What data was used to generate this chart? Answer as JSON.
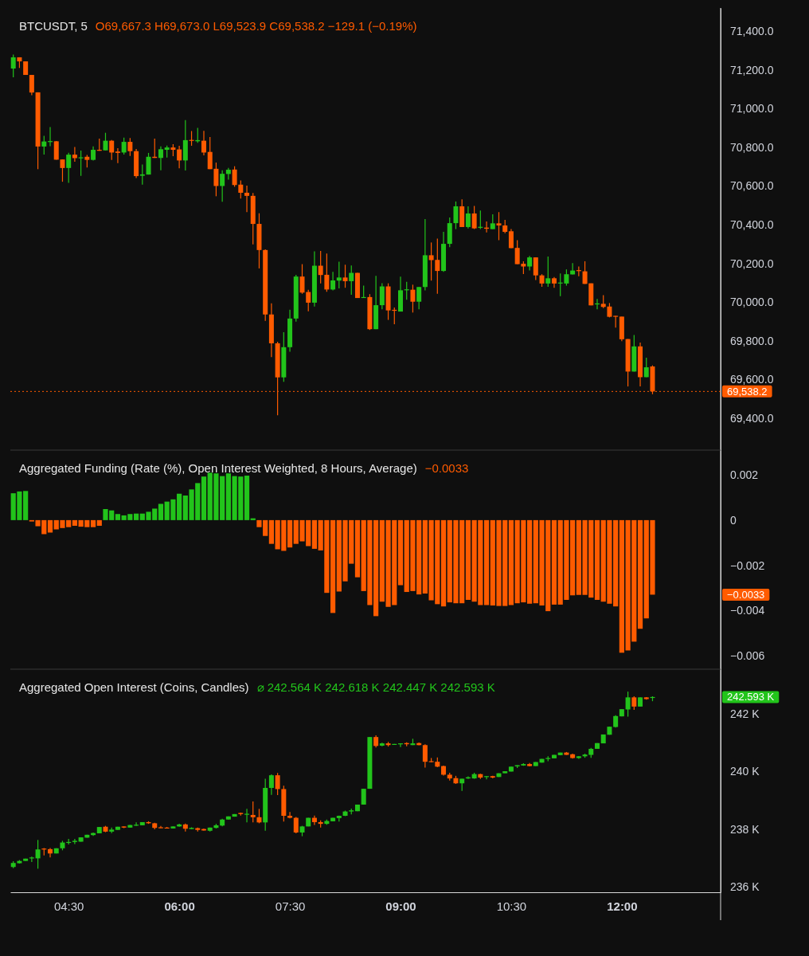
{
  "chart_data": [
    {
      "type": "candlestick",
      "title": "BTCUSDT, 5",
      "subtitle": "O69,667.3 H69,673.0 L69,523.9 C69,538.2 −129.1 (−0.19%)",
      "x": [
        3.75,
        3.8333,
        3.9167,
        4,
        4.0833,
        4.1667,
        4.25,
        4.3333,
        4.4167,
        4.5,
        4.5833,
        4.6667,
        4.75,
        4.8333,
        4.9167,
        5,
        5.0833,
        5.1667,
        5.25,
        5.3333,
        5.4167,
        5.5,
        5.5833,
        5.6667,
        5.75,
        5.8333,
        5.9167,
        6,
        6.0833,
        6.1667,
        6.25,
        6.3333,
        6.4167,
        6.5,
        6.5833,
        6.6667,
        6.75,
        6.8333,
        6.9167,
        7,
        7.0833,
        7.1667,
        7.25,
        7.3333,
        7.4167,
        7.5,
        7.5833,
        7.6667,
        7.75,
        7.8333,
        7.9167,
        8,
        8.0833,
        8.1667,
        8.25,
        8.3333,
        8.4167,
        8.5,
        8.5833,
        8.6667,
        8.75,
        8.8333,
        8.9167,
        9,
        9.0833,
        9.1667,
        9.25,
        9.3333,
        9.4167,
        9.5,
        9.5833,
        9.6667,
        9.75,
        9.8333,
        9.9167,
        10,
        10.0833,
        10.1667,
        10.25,
        10.3333,
        10.4167,
        10.5,
        10.5833,
        10.6667,
        10.75,
        10.8333,
        10.9167,
        11,
        11.0833,
        11.1667,
        11.25,
        11.3333,
        11.4167,
        11.5,
        11.5833,
        11.6667,
        11.75,
        11.8333,
        11.9167,
        12,
        12.0833,
        12.1667,
        12.25,
        12.3333,
        12.4167
      ],
      "ohlc": [
        [
          71207,
          71279,
          71162,
          71265
        ],
        [
          71265,
          71265,
          71210,
          71244
        ],
        [
          71244,
          71244,
          71174,
          71174
        ],
        [
          71174,
          71174,
          71069,
          71083
        ],
        [
          71084,
          71084,
          70687,
          70804
        ],
        [
          70804,
          70859,
          70762,
          70830
        ],
        [
          70830,
          70904,
          70806,
          70832
        ],
        [
          70831,
          70832,
          70736,
          70736
        ],
        [
          70737,
          70737,
          70622,
          70693
        ],
        [
          70693,
          70772,
          70616,
          70762
        ],
        [
          70762,
          70802,
          70725,
          70744
        ],
        [
          70744,
          70783,
          70652,
          70748
        ],
        [
          70751,
          70760,
          70696,
          70735
        ],
        [
          70735,
          70805,
          70732,
          70787
        ],
        [
          70787,
          70845,
          70782,
          70782
        ],
        [
          70784,
          70875,
          70784,
          70834
        ],
        [
          70834,
          70838,
          70735,
          70773
        ],
        [
          70778,
          70795,
          70718,
          70771
        ],
        [
          70773,
          70850,
          70762,
          70828
        ],
        [
          70828,
          70848,
          70755,
          70780
        ],
        [
          70780,
          70791,
          70641,
          70651
        ],
        [
          70653,
          70711,
          70607,
          70660
        ],
        [
          70659,
          70771,
          70659,
          70751
        ],
        [
          70751,
          70845,
          70745,
          70745
        ],
        [
          70745,
          70805,
          70681,
          70790
        ],
        [
          70787,
          70809,
          70747,
          70799
        ],
        [
          70799,
          70816,
          70754,
          70787
        ],
        [
          70789,
          70808,
          70691,
          70732
        ],
        [
          70732,
          70941,
          70680,
          70837
        ],
        [
          70838,
          70884,
          70808,
          70835
        ],
        [
          70831,
          70900,
          70823,
          70837
        ],
        [
          70834,
          70885,
          70758,
          70773
        ],
        [
          70776,
          70853,
          70687,
          70687
        ],
        [
          70689,
          70721,
          70547,
          70600
        ],
        [
          70600,
          70681,
          70518,
          70663
        ],
        [
          70662,
          70693,
          70633,
          70684
        ],
        [
          70685,
          70702,
          70596,
          70605
        ],
        [
          70607,
          70629,
          70535,
          70565
        ],
        [
          70565,
          70602,
          70465,
          70549
        ],
        [
          70549,
          70564,
          70298,
          70404
        ],
        [
          70404,
          70459,
          70174,
          70269
        ],
        [
          70269,
          70272,
          69903,
          69936
        ],
        [
          69936,
          69994,
          69716,
          69787
        ],
        [
          69787,
          69795,
          69415,
          69611
        ],
        [
          69611,
          69844,
          69588,
          69767
        ],
        [
          69767,
          69961,
          69743,
          69915
        ],
        [
          69915,
          70141,
          69899,
          70132
        ],
        [
          70132,
          70196,
          70043,
          70049
        ],
        [
          70052,
          70064,
          69952,
          69997
        ],
        [
          69997,
          70262,
          69977,
          70188
        ],
        [
          70188,
          70264,
          70097,
          70140
        ],
        [
          70141,
          70251,
          70053,
          70065
        ],
        [
          70065,
          70156,
          70060,
          70112
        ],
        [
          70111,
          70209,
          70071,
          70127
        ],
        [
          70127,
          70193,
          70074,
          70108
        ],
        [
          70108,
          70189,
          70038,
          70151
        ],
        [
          70151,
          70151,
          70021,
          70021
        ],
        [
          70023,
          70085,
          70021,
          70026
        ],
        [
          70026,
          70041,
          69856,
          69860
        ],
        [
          69860,
          70136,
          69860,
          69984
        ],
        [
          69984,
          70098,
          69963,
          70081
        ],
        [
          70081,
          70097,
          69908,
          69957
        ],
        [
          69960,
          69972,
          69886,
          69957
        ],
        [
          69951,
          70132,
          69951,
          70061
        ],
        [
          70063,
          70105,
          70012,
          70066
        ],
        [
          70064,
          70090,
          69946,
          70002
        ],
        [
          70002,
          70078,
          69963,
          70078
        ],
        [
          70078,
          70429,
          70060,
          70242
        ],
        [
          70242,
          70308,
          70111,
          70217
        ],
        [
          70218,
          70328,
          70043,
          70161
        ],
        [
          70161,
          70363,
          70156,
          70301
        ],
        [
          70301,
          70437,
          70284,
          70408
        ],
        [
          70408,
          70520,
          70377,
          70495
        ],
        [
          70495,
          70531,
          70388,
          70388
        ],
        [
          70388,
          70495,
          70381,
          70458
        ],
        [
          70458,
          70497,
          70377,
          70381
        ],
        [
          70384,
          70473,
          70377,
          70389
        ],
        [
          70385,
          70417,
          70360,
          70379
        ],
        [
          70377,
          70454,
          70377,
          70407
        ],
        [
          70407,
          70465,
          70320,
          70396
        ],
        [
          70396,
          70425,
          70356,
          70363
        ],
        [
          70366,
          70377,
          70279,
          70279
        ],
        [
          70280,
          70320,
          70196,
          70196
        ],
        [
          70198,
          70211,
          70145,
          70184
        ],
        [
          70184,
          70239,
          70163,
          70231
        ],
        [
          70231,
          70231,
          70114,
          70138
        ],
        [
          70138,
          70144,
          70079,
          70096
        ],
        [
          70096,
          70235,
          70079,
          70123
        ],
        [
          70123,
          70129,
          70074,
          70096
        ],
        [
          70098,
          70148,
          70031,
          70101
        ],
        [
          70096,
          70169,
          70085,
          70144
        ],
        [
          70143,
          70202,
          70143,
          70163
        ],
        [
          70165,
          70184,
          70134,
          70162
        ],
        [
          70159,
          70211,
          70094,
          70094
        ],
        [
          70097,
          70097,
          69983,
          69983
        ],
        [
          69990,
          70016,
          69963,
          69993
        ],
        [
          69991,
          70036,
          69969,
          69975
        ],
        [
          69977,
          69995,
          69921,
          69924
        ],
        [
          69929,
          69929,
          69868,
          69926
        ],
        [
          69925,
          69925,
          69798,
          69808
        ],
        [
          69809,
          69809,
          69564,
          69641
        ],
        [
          69641,
          69830,
          69641,
          69771
        ],
        [
          69771,
          69791,
          69564,
          69612
        ],
        [
          69612,
          69713,
          69612,
          69663
        ],
        [
          69667.3,
          69673.0,
          69523.9,
          69538.2
        ]
      ],
      "colors": [
        "#22c41b",
        "#ff5b00",
        "#ff5b00",
        "#ff5b00",
        "#ff5b00",
        "#22c41b",
        "#22c41b",
        "#ff5b00",
        "#ff5b00",
        "#22c41b",
        "#ff5b00",
        "#22c41b",
        "#ff5b00",
        "#22c41b",
        "#ff5b00",
        "#22c41b",
        "#ff5b00",
        "#ff5b00",
        "#22c41b",
        "#ff5b00",
        "#ff5b00",
        "#22c41b",
        "#22c41b",
        "#ff5b00",
        "#22c41b",
        "#22c41b",
        "#ff5b00",
        "#ff5b00",
        "#22c41b",
        "#ff5b00",
        "#22c41b",
        "#ff5b00",
        "#ff5b00",
        "#ff5b00",
        "#22c41b",
        "#22c41b",
        "#ff5b00",
        "#ff5b00",
        "#ff5b00",
        "#ff5b00",
        "#ff5b00",
        "#ff5b00",
        "#ff5b00",
        "#ff5b00",
        "#22c41b",
        "#22c41b",
        "#22c41b",
        "#ff5b00",
        "#ff5b00",
        "#22c41b",
        "#ff5b00",
        "#ff5b00",
        "#22c41b",
        "#22c41b",
        "#ff5b00",
        "#22c41b",
        "#ff5b00",
        "#22c41b",
        "#ff5b00",
        "#22c41b",
        "#22c41b",
        "#ff5b00",
        "#ff5b00",
        "#22c41b",
        "#22c41b",
        "#ff5b00",
        "#22c41b",
        "#22c41b",
        "#ff5b00",
        "#ff5b00",
        "#22c41b",
        "#22c41b",
        "#22c41b",
        "#ff5b00",
        "#22c41b",
        "#ff5b00",
        "#22c41b",
        "#ff5b00",
        "#22c41b",
        "#ff5b00",
        "#ff5b00",
        "#ff5b00",
        "#ff5b00",
        "#ff5b00",
        "#22c41b",
        "#ff5b00",
        "#ff5b00",
        "#22c41b",
        "#ff5b00",
        "#22c41b",
        "#22c41b",
        "#22c41b",
        "#ff5b00",
        "#ff5b00",
        "#ff5b00",
        "#22c41b",
        "#ff5b00",
        "#ff5b00",
        "#ff5b00",
        "#ff5b00",
        "#ff5b00",
        "#22c41b",
        "#ff5b00",
        "#22c41b",
        "#ff5b00"
      ],
      "xlim": [
        3.71,
        13.34
      ],
      "ylim": [
        69235,
        71520
      ],
      "yticks": [
        {
          "value": 69400,
          "label": "69,400.0"
        },
        {
          "value": 69600,
          "label": "69,600.0"
        },
        {
          "value": 69800,
          "label": "69,800.0"
        },
        {
          "value": 70000,
          "label": "70,000.0"
        },
        {
          "value": 70200,
          "label": "70,200.0"
        },
        {
          "value": 70400,
          "label": "70,400.0"
        },
        {
          "value": 70600,
          "label": "70,600.0"
        },
        {
          "value": 70800,
          "label": "70,800.0"
        },
        {
          "value": 71000,
          "label": "71,000.0"
        },
        {
          "value": 71200,
          "label": "71,200.0"
        },
        {
          "value": 71400,
          "label": "71,400.0"
        }
      ],
      "ref_lines": [
        {
          "axis": "y",
          "value": 69538.2,
          "label": "69,538.2",
          "color": "#ff5b00",
          "line_style": "dotted"
        }
      ],
      "tick_labels": "y",
      "grid": false
    },
    {
      "type": "bar",
      "title": "Aggregated Funding (Rate (%), Open Interest Weighted, 8 Hours, Average)",
      "subtitle": "−0.0033",
      "x": [
        3.75,
        3.8333,
        3.9167,
        4,
        4.0833,
        4.1667,
        4.25,
        4.3333,
        4.4167,
        4.5,
        4.5833,
        4.6667,
        4.75,
        4.8333,
        4.9167,
        5,
        5.0833,
        5.1667,
        5.25,
        5.3333,
        5.4167,
        5.5,
        5.5833,
        5.6667,
        5.75,
        5.8333,
        5.9167,
        6,
        6.0833,
        6.1667,
        6.25,
        6.3333,
        6.4167,
        6.5,
        6.5833,
        6.6667,
        6.75,
        6.8333,
        6.9167,
        7,
        7.0833,
        7.1667,
        7.25,
        7.3333,
        7.4167,
        7.5,
        7.5833,
        7.6667,
        7.75,
        7.8333,
        7.9167,
        8,
        8.0833,
        8.1667,
        8.25,
        8.3333,
        8.4167,
        8.5,
        8.5833,
        8.6667,
        8.75,
        8.8333,
        8.9167,
        9,
        9.0833,
        9.1667,
        9.25,
        9.3333,
        9.4167,
        9.5,
        9.5833,
        9.6667,
        9.75,
        9.8333,
        9.9167,
        10,
        10.0833,
        10.1667,
        10.25,
        10.3333,
        10.4167,
        10.5,
        10.5833,
        10.6667,
        10.75,
        10.8333,
        10.9167,
        11,
        11.0833,
        11.1667,
        11.25,
        11.3333,
        11.4167,
        11.5,
        11.5833,
        11.6667,
        11.75,
        11.8333,
        11.9167,
        12,
        12.0833,
        12.1667,
        12.25,
        12.3333,
        12.4167
      ],
      "values": [
        0.00119,
        0.00127,
        0.00129,
        -6e-05,
        -0.00027,
        -0.00062,
        -0.00055,
        -0.00041,
        -0.00035,
        -0.00031,
        -0.00025,
        -0.00029,
        -0.00031,
        -0.00031,
        -0.00025,
        0.00049,
        0.00043,
        0.00027,
        0.00021,
        0.00027,
        0.00029,
        0.00029,
        0.00037,
        0.00051,
        0.00072,
        0.00082,
        0.00092,
        0.00117,
        0.00109,
        0.00136,
        0.00164,
        0.00193,
        0.0021,
        0.00207,
        0.00195,
        0.00207,
        0.00195,
        0.00193,
        0.00197,
        8e-05,
        -0.00031,
        -0.0007,
        -0.00105,
        -0.00129,
        -0.00136,
        -0.00121,
        -0.00105,
        -0.00094,
        -0.00115,
        -0.00127,
        -0.00134,
        -0.00322,
        -0.00411,
        -0.00316,
        -0.00271,
        -0.00193,
        -0.00253,
        -0.00314,
        -0.00376,
        -0.00425,
        -0.00361,
        -0.00384,
        -0.00376,
        -0.00288,
        -0.00318,
        -0.00314,
        -0.00329,
        -0.00325,
        -0.00355,
        -0.00372,
        -0.00382,
        -0.00364,
        -0.00368,
        -0.00368,
        -0.00353,
        -0.00361,
        -0.00376,
        -0.00376,
        -0.00378,
        -0.0038,
        -0.0038,
        -0.00376,
        -0.00368,
        -0.00364,
        -0.0037,
        -0.00368,
        -0.00378,
        -0.00403,
        -0.00374,
        -0.00374,
        -0.00353,
        -0.00333,
        -0.00331,
        -0.00331,
        -0.00343,
        -0.00353,
        -0.00361,
        -0.0037,
        -0.00382,
        -0.00587,
        -0.00577,
        -0.00538,
        -0.00481,
        -0.00435,
        -0.0033
      ],
      "colors": [
        "#22c41b",
        "#22c41b",
        "#22c41b",
        "#ff5b00",
        "#ff5b00",
        "#ff5b00",
        "#ff5b00",
        "#ff5b00",
        "#ff5b00",
        "#ff5b00",
        "#ff5b00",
        "#ff5b00",
        "#ff5b00",
        "#ff5b00",
        "#ff5b00",
        "#22c41b",
        "#22c41b",
        "#22c41b",
        "#22c41b",
        "#22c41b",
        "#22c41b",
        "#22c41b",
        "#22c41b",
        "#22c41b",
        "#22c41b",
        "#22c41b",
        "#22c41b",
        "#22c41b",
        "#22c41b",
        "#22c41b",
        "#22c41b",
        "#22c41b",
        "#22c41b",
        "#22c41b",
        "#22c41b",
        "#22c41b",
        "#22c41b",
        "#22c41b",
        "#22c41b",
        "#22c41b",
        "#ff5b00",
        "#ff5b00",
        "#ff5b00",
        "#ff5b00",
        "#ff5b00",
        "#ff5b00",
        "#ff5b00",
        "#ff5b00",
        "#ff5b00",
        "#ff5b00",
        "#ff5b00",
        "#ff5b00",
        "#ff5b00",
        "#ff5b00",
        "#ff5b00",
        "#ff5b00",
        "#ff5b00",
        "#ff5b00",
        "#ff5b00",
        "#ff5b00",
        "#ff5b00",
        "#ff5b00",
        "#ff5b00",
        "#ff5b00",
        "#ff5b00",
        "#ff5b00",
        "#ff5b00",
        "#ff5b00",
        "#ff5b00",
        "#ff5b00",
        "#ff5b00",
        "#ff5b00",
        "#ff5b00",
        "#ff5b00",
        "#ff5b00",
        "#ff5b00",
        "#ff5b00",
        "#ff5b00",
        "#ff5b00",
        "#ff5b00",
        "#ff5b00",
        "#ff5b00",
        "#ff5b00",
        "#ff5b00",
        "#ff5b00",
        "#ff5b00",
        "#ff5b00",
        "#ff5b00",
        "#ff5b00",
        "#ff5b00",
        "#ff5b00",
        "#ff5b00",
        "#ff5b00",
        "#ff5b00",
        "#ff5b00",
        "#ff5b00",
        "#ff5b00",
        "#ff5b00",
        "#ff5b00",
        "#ff5b00",
        "#ff5b00",
        "#ff5b00",
        "#ff5b00",
        "#ff5b00",
        "#ff5b00"
      ],
      "xlim": [
        3.71,
        13.34
      ],
      "ylim": [
        -0.0066,
        0.0031
      ],
      "yticks": [
        0.002,
        0,
        {
          "value": -0.002,
          "label": "−0.002"
        },
        {
          "value": -0.004,
          "label": "−0.004"
        },
        {
          "value": -0.006,
          "label": "−0.006"
        }
      ],
      "annotations": [
        "−0.0033"
      ],
      "tick_labels": "y",
      "grid": false
    },
    {
      "type": "candlestick",
      "title": "Aggregated Open Interest (Coins, Candles)",
      "subtitle": "⌀ 242.564 K 242.618 K 242.447 K 242.593 K",
      "x": [
        3.75,
        3.8333,
        3.9167,
        4,
        4.0833,
        4.1667,
        4.25,
        4.3333,
        4.4167,
        4.5,
        4.5833,
        4.6667,
        4.75,
        4.8333,
        4.9167,
        5,
        5.0833,
        5.1667,
        5.25,
        5.3333,
        5.4167,
        5.5,
        5.5833,
        5.6667,
        5.75,
        5.8333,
        5.9167,
        6,
        6.0833,
        6.1667,
        6.25,
        6.3333,
        6.4167,
        6.5,
        6.5833,
        6.6667,
        6.75,
        6.8333,
        6.9167,
        7,
        7.0833,
        7.1667,
        7.25,
        7.3333,
        7.4167,
        7.5,
        7.5833,
        7.6667,
        7.75,
        7.8333,
        7.9167,
        8,
        8.0833,
        8.1667,
        8.25,
        8.3333,
        8.4167,
        8.5,
        8.5833,
        8.6667,
        8.75,
        8.8333,
        8.9167,
        9,
        9.0833,
        9.1667,
        9.25,
        9.3333,
        9.4167,
        9.5,
        9.5833,
        9.6667,
        9.75,
        9.8333,
        9.9167,
        10,
        10.0833,
        10.1667,
        10.25,
        10.3333,
        10.4167,
        10.5,
        10.5833,
        10.6667,
        10.75,
        10.8333,
        10.9167,
        11,
        11.0833,
        11.1667,
        11.25,
        11.3333,
        11.4167,
        11.5,
        11.5833,
        11.6667,
        11.75,
        11.8333,
        11.9167,
        12,
        12.0833,
        12.1667,
        12.25,
        12.3333,
        12.4167
      ],
      "ohlc": [
        [
          236.68,
          236.88,
          236.64,
          236.82
        ],
        [
          236.81,
          236.92,
          236.8,
          236.89
        ],
        [
          236.89,
          236.97,
          236.89,
          236.97
        ],
        [
          236.98,
          237.04,
          236.85,
          237.01
        ],
        [
          236.98,
          237.62,
          236.62,
          237.29
        ],
        [
          237.32,
          237.34,
          237.08,
          237.29
        ],
        [
          237.3,
          237.34,
          237.01,
          237.15
        ],
        [
          237.15,
          237.33,
          237.15,
          237.33
        ],
        [
          237.33,
          237.59,
          237.26,
          237.53
        ],
        [
          237.53,
          237.66,
          237.46,
          237.55
        ],
        [
          237.55,
          237.66,
          237.48,
          237.59
        ],
        [
          237.56,
          237.71,
          237.56,
          237.71
        ],
        [
          237.7,
          237.8,
          237.7,
          237.8
        ],
        [
          237.79,
          237.88,
          237.76,
          237.86
        ],
        [
          237.85,
          238.07,
          237.85,
          238.07
        ],
        [
          238.08,
          238.11,
          237.89,
          237.91
        ],
        [
          237.91,
          238.05,
          237.86,
          237.98
        ],
        [
          237.97,
          238.08,
          237.97,
          238.08
        ],
        [
          238.09,
          238.09,
          238.03,
          238.05
        ],
        [
          238.05,
          238.14,
          238.05,
          238.14
        ],
        [
          238.13,
          238.23,
          238.11,
          238.15
        ],
        [
          238.13,
          238.24,
          238.13,
          238.24
        ],
        [
          238.24,
          238.27,
          238.18,
          238.2
        ],
        [
          238.2,
          238.22,
          237.99,
          238.04
        ],
        [
          238.06,
          238.11,
          238.03,
          238.04
        ],
        [
          238.05,
          238.07,
          238.02,
          238.02
        ],
        [
          238.02,
          238.09,
          238.02,
          238.09
        ],
        [
          238.09,
          238.18,
          238.08,
          238.16
        ],
        [
          238.16,
          238.19,
          237.91,
          238.01
        ],
        [
          238,
          238.06,
          238,
          238.04
        ],
        [
          238.03,
          238.05,
          237.91,
          237.97
        ],
        [
          238,
          238.02,
          237.94,
          237.95
        ],
        [
          237.94,
          238.05,
          237.91,
          238.05
        ],
        [
          238.04,
          238.18,
          238.02,
          238.13
        ],
        [
          238.12,
          238.36,
          238.09,
          238.33
        ],
        [
          238.33,
          238.44,
          238.33,
          238.44
        ],
        [
          238.43,
          238.52,
          238.43,
          238.52
        ],
        [
          238.56,
          238.57,
          238.47,
          238.52
        ],
        [
          238.51,
          238.7,
          238.23,
          238.53
        ],
        [
          238.49,
          238.96,
          238.23,
          238.41
        ],
        [
          238.41,
          238.7,
          238.2,
          238.23
        ],
        [
          238.23,
          239.75,
          237.94,
          239.43
        ],
        [
          239.43,
          239.9,
          239.19,
          239.87
        ],
        [
          239.87,
          239.95,
          239.18,
          239.39
        ],
        [
          239.39,
          239.51,
          238.26,
          238.46
        ],
        [
          238.46,
          238.59,
          238.37,
          238.39
        ],
        [
          238.39,
          238.42,
          237.85,
          237.88
        ],
        [
          237.88,
          238.11,
          237.75,
          238.09
        ],
        [
          238.09,
          238.39,
          238.09,
          238.39
        ],
        [
          238.39,
          238.47,
          238.14,
          238.24
        ],
        [
          238.24,
          238.3,
          238.05,
          238.18
        ],
        [
          238.18,
          238.33,
          238.15,
          238.28
        ],
        [
          238.27,
          238.39,
          238.27,
          238.39
        ],
        [
          238.38,
          238.47,
          238.26,
          238.46
        ],
        [
          238.46,
          238.64,
          238.45,
          238.61
        ],
        [
          238.61,
          238.71,
          238.51,
          238.65
        ],
        [
          238.62,
          238.85,
          238.62,
          238.85
        ],
        [
          238.85,
          239.4,
          238.85,
          239.4
        ],
        [
          239.4,
          241.2,
          239.4,
          241.2
        ],
        [
          241.2,
          241.26,
          240.84,
          240.89
        ],
        [
          240.9,
          241,
          240.88,
          240.98
        ],
        [
          240.98,
          241.03,
          240.87,
          240.92
        ],
        [
          240.93,
          240.96,
          240.93,
          240.96
        ],
        [
          240.95,
          240.98,
          240.85,
          240.98
        ],
        [
          240.99,
          241.02,
          240.88,
          240.95
        ],
        [
          240.92,
          241.14,
          240.92,
          240.98
        ],
        [
          240.99,
          241.01,
          240.91,
          240.92
        ],
        [
          240.92,
          240.95,
          240.14,
          240.34
        ],
        [
          240.36,
          240.47,
          240.32,
          240.33
        ],
        [
          240.34,
          240.49,
          240.15,
          240.17
        ],
        [
          240.19,
          240.21,
          239.86,
          239.89
        ],
        [
          239.89,
          239.96,
          239.69,
          239.76
        ],
        [
          239.77,
          239.85,
          239.57,
          239.59
        ],
        [
          239.59,
          239.75,
          239.33,
          239.75
        ],
        [
          239.76,
          239.83,
          239.74,
          239.8
        ],
        [
          239.76,
          239.96,
          239.75,
          239.91
        ],
        [
          239.91,
          239.92,
          239.74,
          239.79
        ],
        [
          239.81,
          239.84,
          239.73,
          239.84
        ],
        [
          239.84,
          239.85,
          239.76,
          239.79
        ],
        [
          239.81,
          239.94,
          239.81,
          239.94
        ],
        [
          239.94,
          240.01,
          239.94,
          240.01
        ],
        [
          240,
          240.17,
          240,
          240.17
        ],
        [
          240.18,
          240.22,
          240.12,
          240.22
        ],
        [
          240.21,
          240.29,
          240.2,
          240.26
        ],
        [
          240.26,
          240.3,
          240.18,
          240.19
        ],
        [
          240.19,
          240.33,
          240.19,
          240.33
        ],
        [
          240.31,
          240.44,
          240.31,
          240.44
        ],
        [
          240.45,
          240.53,
          240.36,
          240.47
        ],
        [
          240.46,
          240.58,
          240.46,
          240.58
        ],
        [
          240.57,
          240.66,
          240.57,
          240.66
        ],
        [
          240.66,
          240.68,
          240.58,
          240.58
        ],
        [
          240.6,
          240.62,
          240.45,
          240.47
        ],
        [
          240.47,
          240.54,
          240.44,
          240.53
        ],
        [
          240.53,
          240.62,
          240.48,
          240.59
        ],
        [
          240.58,
          240.82,
          240.48,
          240.79
        ],
        [
          240.79,
          240.99,
          240.79,
          240.99
        ],
        [
          240.98,
          241.29,
          240.98,
          241.29
        ],
        [
          241.28,
          241.56,
          241.28,
          241.56
        ],
        [
          241.55,
          241.96,
          241.53,
          241.93
        ],
        [
          241.92,
          242.17,
          241.92,
          242.17
        ],
        [
          242.16,
          242.78,
          241.91,
          242.58
        ],
        [
          242.58,
          242.62,
          242.15,
          242.26
        ],
        [
          242.26,
          242.58,
          242.26,
          242.58
        ],
        [
          242.58,
          242.59,
          242.5,
          242.52
        ],
        [
          242.564,
          242.618,
          242.447,
          242.593
        ]
      ],
      "colors": [
        "#22c41b",
        "#22c41b",
        "#22c41b",
        "#22c41b",
        "#22c41b",
        "#ff5b00",
        "#ff5b00",
        "#22c41b",
        "#22c41b",
        "#22c41b",
        "#22c41b",
        "#22c41b",
        "#22c41b",
        "#22c41b",
        "#22c41b",
        "#ff5b00",
        "#22c41b",
        "#22c41b",
        "#ff5b00",
        "#22c41b",
        "#22c41b",
        "#22c41b",
        "#ff5b00",
        "#ff5b00",
        "#ff5b00",
        "#ff5b00",
        "#22c41b",
        "#22c41b",
        "#ff5b00",
        "#22c41b",
        "#ff5b00",
        "#ff5b00",
        "#22c41b",
        "#22c41b",
        "#22c41b",
        "#22c41b",
        "#22c41b",
        "#ff5b00",
        "#22c41b",
        "#ff5b00",
        "#ff5b00",
        "#22c41b",
        "#22c41b",
        "#ff5b00",
        "#ff5b00",
        "#ff5b00",
        "#ff5b00",
        "#22c41b",
        "#22c41b",
        "#ff5b00",
        "#ff5b00",
        "#22c41b",
        "#22c41b",
        "#22c41b",
        "#22c41b",
        "#22c41b",
        "#22c41b",
        "#22c41b",
        "#22c41b",
        "#ff5b00",
        "#22c41b",
        "#ff5b00",
        "#22c41b",
        "#22c41b",
        "#ff5b00",
        "#22c41b",
        "#ff5b00",
        "#ff5b00",
        "#ff5b00",
        "#ff5b00",
        "#ff5b00",
        "#ff5b00",
        "#ff5b00",
        "#22c41b",
        "#22c41b",
        "#22c41b",
        "#ff5b00",
        "#22c41b",
        "#ff5b00",
        "#22c41b",
        "#22c41b",
        "#22c41b",
        "#22c41b",
        "#22c41b",
        "#ff5b00",
        "#22c41b",
        "#22c41b",
        "#22c41b",
        "#22c41b",
        "#22c41b",
        "#ff5b00",
        "#ff5b00",
        "#22c41b",
        "#22c41b",
        "#22c41b",
        "#22c41b",
        "#22c41b",
        "#22c41b",
        "#22c41b",
        "#22c41b",
        "#22c41b",
        "#ff5b00",
        "#22c41b",
        "#ff5b00",
        "#22c41b"
      ],
      "xlim": [
        3.71,
        13.34
      ],
      "ylim": [
        235.8,
        243.56
      ],
      "xticks": [
        {
          "value": 4.5,
          "label": "04:30"
        },
        {
          "value": 6,
          "label": "06:00"
        },
        {
          "value": 7.5,
          "label": "07:30"
        },
        {
          "value": 9,
          "label": "09:00"
        },
        {
          "value": 10.5,
          "label": "10:30"
        },
        {
          "value": 12,
          "label": "12:00"
        }
      ],
      "yticks": [
        {
          "value": 236,
          "label": "236 K"
        },
        {
          "value": 238,
          "label": "238 K"
        },
        {
          "value": 240,
          "label": "240 K"
        },
        {
          "value": 242,
          "label": "242 K"
        }
      ],
      "annotations": [
        "242.593 K"
      ],
      "grid": false
    }
  ]
}
